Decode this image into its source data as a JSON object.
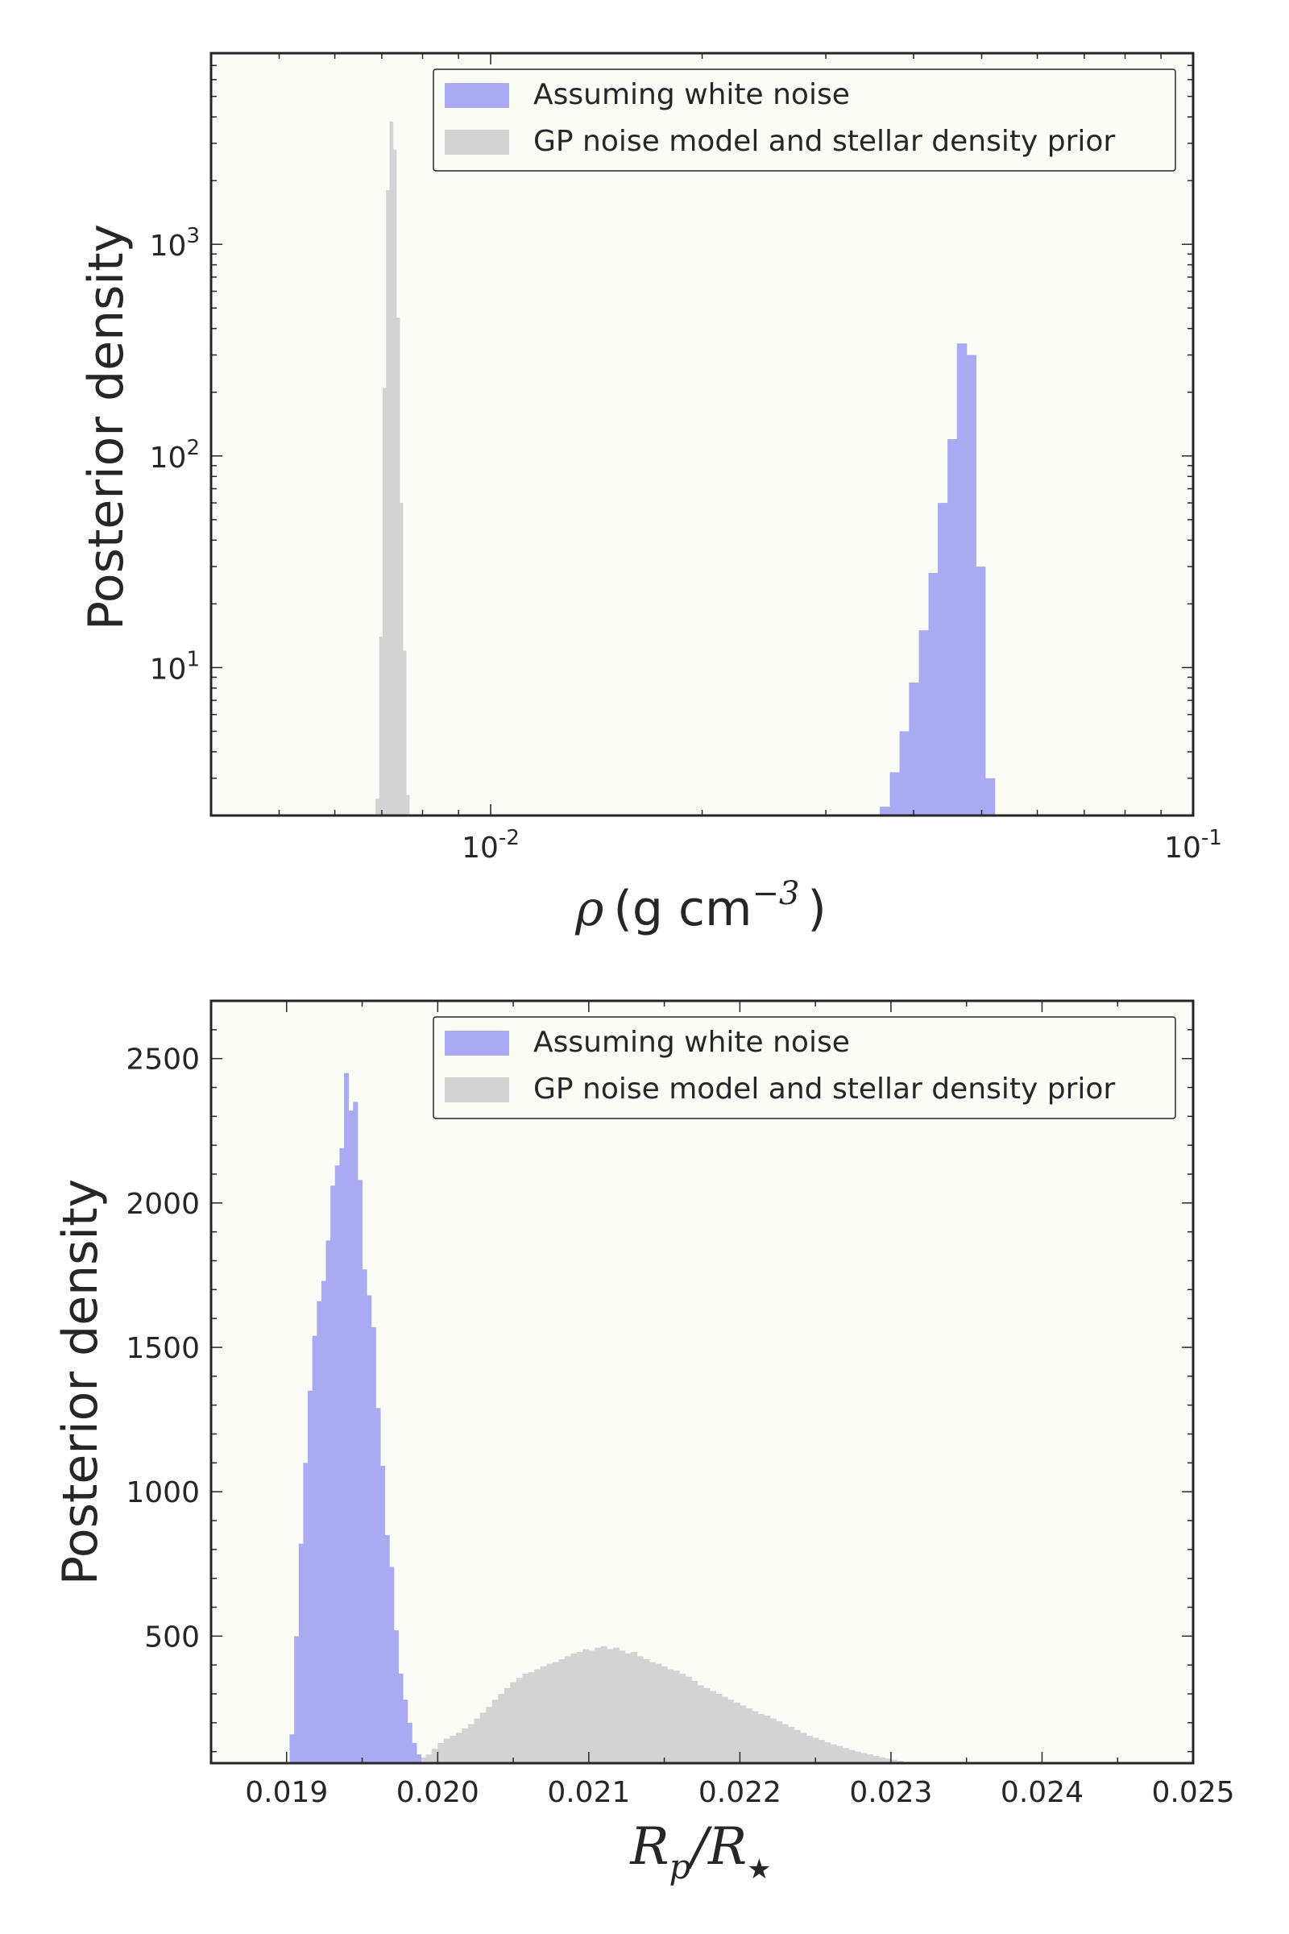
{
  "chart_data": [
    {
      "type": "bar",
      "subtype": "histogram",
      "xscale": "log",
      "yscale": "log",
      "xlabel": "ρ (g cm⁻³)",
      "xlabel_rho": "ρ",
      "xlabel_unit": "(g cm",
      "xlabel_exp": "−3",
      "xlabel_close": ")",
      "ylabel": "Posterior density",
      "xlim": [
        0.004,
        0.1
      ],
      "ylim": [
        2.0,
        8000
      ],
      "xticks": [
        {
          "value": 0.01,
          "base": "10",
          "exp": "-2"
        },
        {
          "value": 0.1,
          "base": "10",
          "exp": "-1"
        }
      ],
      "yticks": [
        {
          "value": 10,
          "base": "10",
          "exp": "1"
        },
        {
          "value": 100,
          "base": "10",
          "exp": "2"
        },
        {
          "value": 1000,
          "base": "10",
          "exp": "3"
        }
      ],
      "grid": false,
      "legend_position": "upper-right",
      "legend": [
        "Assuming white noise",
        "GP noise model and stellar density prior"
      ],
      "series": [
        {
          "name": "Assuming white noise",
          "color": "#aaaaf2",
          "bins": [
            {
              "x0": 0.0358,
              "x1": 0.037,
              "y": 2.2
            },
            {
              "x0": 0.037,
              "x1": 0.0382,
              "y": 3.2
            },
            {
              "x0": 0.0382,
              "x1": 0.0394,
              "y": 5.0
            },
            {
              "x0": 0.0394,
              "x1": 0.0407,
              "y": 8.5
            },
            {
              "x0": 0.0407,
              "x1": 0.042,
              "y": 15
            },
            {
              "x0": 0.042,
              "x1": 0.0433,
              "y": 28
            },
            {
              "x0": 0.0433,
              "x1": 0.0447,
              "y": 60
            },
            {
              "x0": 0.0447,
              "x1": 0.0461,
              "y": 120
            },
            {
              "x0": 0.0461,
              "x1": 0.0476,
              "y": 340
            },
            {
              "x0": 0.0476,
              "x1": 0.0491,
              "y": 300
            },
            {
              "x0": 0.0491,
              "x1": 0.0506,
              "y": 30
            },
            {
              "x0": 0.0506,
              "x1": 0.0522,
              "y": 3.0
            }
          ]
        },
        {
          "name": "GP noise model and stellar density prior",
          "color": "#d3d3d3",
          "bins": [
            {
              "x0": 0.00686,
              "x1": 0.00694,
              "y": 2.4
            },
            {
              "x0": 0.00694,
              "x1": 0.00702,
              "y": 14
            },
            {
              "x0": 0.00702,
              "x1": 0.0071,
              "y": 210
            },
            {
              "x0": 0.0071,
              "x1": 0.00718,
              "y": 1800
            },
            {
              "x0": 0.00718,
              "x1": 0.00726,
              "y": 3800
            },
            {
              "x0": 0.00726,
              "x1": 0.00734,
              "y": 2800
            },
            {
              "x0": 0.00734,
              "x1": 0.00742,
              "y": 450
            },
            {
              "x0": 0.00742,
              "x1": 0.0075,
              "y": 60
            },
            {
              "x0": 0.0075,
              "x1": 0.00758,
              "y": 12
            },
            {
              "x0": 0.00758,
              "x1": 0.00766,
              "y": 2.5
            }
          ]
        }
      ]
    },
    {
      "type": "bar",
      "subtype": "histogram",
      "xscale": "linear",
      "yscale": "linear",
      "xlabel": "R_p / R_⋆",
      "xlabel_R": "R",
      "xlabel_p": "p",
      "xlabel_slash": "/R",
      "xlabel_star": "★",
      "ylabel": "Posterior density",
      "xlim": [
        0.0185,
        0.025
      ],
      "ylim": [
        60,
        2700
      ],
      "xticks": [
        "0.019",
        "0.020",
        "0.021",
        "0.022",
        "0.023",
        "0.024",
        "0.025"
      ],
      "xtick_values": [
        0.019,
        0.02,
        0.021,
        0.022,
        0.023,
        0.024,
        0.025
      ],
      "yticks": [
        "500",
        "1000",
        "1500",
        "2000",
        "2500"
      ],
      "ytick_values": [
        500,
        1000,
        1500,
        2000,
        2500
      ],
      "grid": false,
      "legend_position": "upper-right",
      "legend": [
        "Assuming white noise",
        "GP noise model and stellar density prior"
      ],
      "series": [
        {
          "name": "Assuming white noise",
          "color": "#aaaaf2",
          "bin_start": 0.01902,
          "bin_width": 3e-05,
          "values": [
            160,
            500,
            820,
            1100,
            1350,
            1540,
            1660,
            1730,
            1870,
            2060,
            2130,
            2190,
            2450,
            2320,
            2350,
            2080,
            1770,
            1680,
            1570,
            1290,
            1090,
            850,
            740,
            520,
            370,
            280,
            200,
            130,
            90,
            60
          ]
        },
        {
          "name": "GP noise model and stellar density prior",
          "color": "#d3d3d3",
          "bin_start": 0.01972,
          "bin_width": 4e-05,
          "values": [
            60,
            65,
            70,
            80,
            80,
            90,
            110,
            130,
            145,
            155,
            165,
            180,
            195,
            215,
            235,
            255,
            280,
            300,
            320,
            340,
            355,
            370,
            375,
            385,
            395,
            405,
            410,
            420,
            430,
            440,
            445,
            455,
            450,
            460,
            465,
            455,
            460,
            450,
            440,
            445,
            430,
            420,
            410,
            405,
            395,
            385,
            380,
            370,
            360,
            345,
            330,
            320,
            310,
            300,
            290,
            280,
            270,
            260,
            250,
            240,
            230,
            225,
            215,
            205,
            195,
            185,
            175,
            165,
            155,
            148,
            140,
            132,
            125,
            120,
            112,
            106,
            100,
            95,
            90,
            85,
            80,
            76,
            72,
            68,
            64,
            62
          ]
        }
      ]
    }
  ]
}
